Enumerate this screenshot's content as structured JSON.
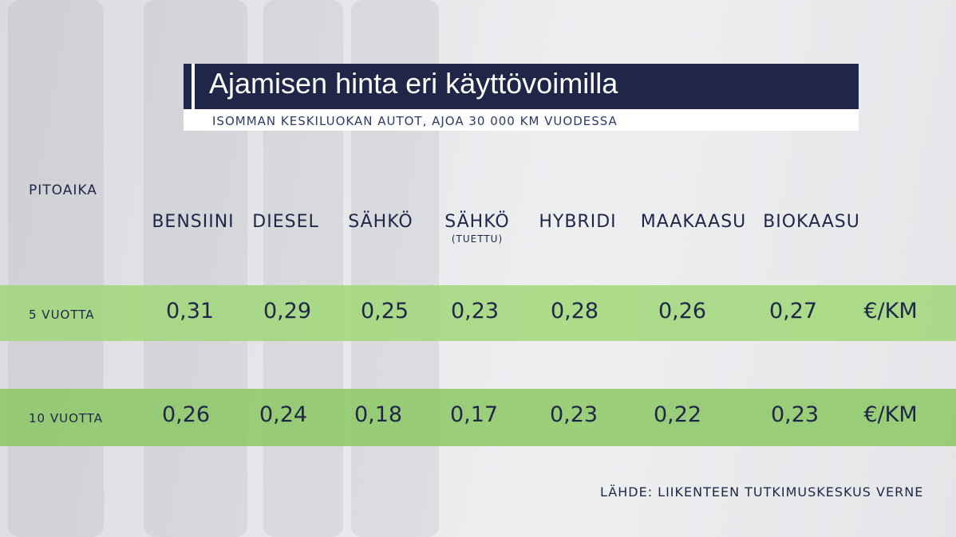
{
  "header": {
    "title": "Ajamisen hinta eri käyttövoimilla",
    "subtitle": "ISOMMAN KESKILUOKAN AUTOT,  AJOA 30 000 KM VUODESSA"
  },
  "table": {
    "row_header": "PITOAIKA",
    "columns": [
      {
        "label": "BENSIINI"
      },
      {
        "label": "DIESEL"
      },
      {
        "label": "SÄHKÖ"
      },
      {
        "label": "SÄHKÖ",
        "note": "(TUETTU)"
      },
      {
        "label": "HYBRIDI"
      },
      {
        "label": "MAAKAASU"
      },
      {
        "label": "BIOKAASU"
      }
    ],
    "rows": [
      {
        "label": "5 VUOTTA",
        "values": [
          "0,31",
          "0,29",
          "0,25",
          "0,23",
          "0,28",
          "0,26",
          "0,27"
        ],
        "unit": "€/KM"
      },
      {
        "label": "10 VUOTTA",
        "values": [
          "0,26",
          "0,24",
          "0,18",
          "0,17",
          "0,23",
          "0,22",
          "0,23"
        ],
        "unit": "€/KM"
      }
    ]
  },
  "footer": {
    "source": "LÄHDE: LIIKENTEEN TUTKIMUSKESKUS VERNE"
  }
}
